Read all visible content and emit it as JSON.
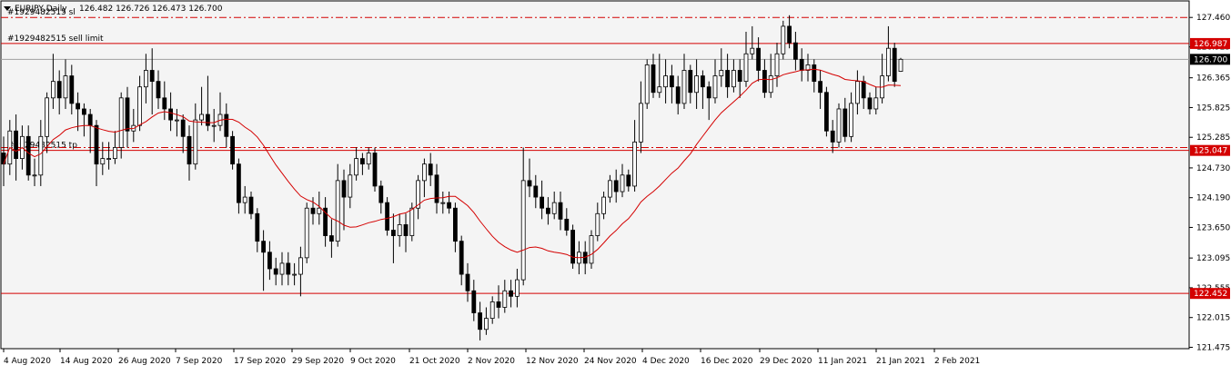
{
  "header": {
    "symbol_label": "EURJPY,Daily",
    "ohlc_text": "126.482 126.726 126.473 126.700",
    "menu_icon": "triangle-down-icon"
  },
  "colors": {
    "background": "#f4f4f4",
    "candle_up": "#ffffff",
    "candle_down": "#000000",
    "outline": "#000000",
    "ma_line": "#d40000",
    "level_line": "#d40000",
    "current_price_line": "#a0a0a0",
    "label_bg": "#d40000",
    "label_text": "#ffffff",
    "current_label_bg": "#000000"
  },
  "chart_data": {
    "type": "candlestick",
    "symbol": "EURJPY",
    "timeframe": "Daily",
    "ylim": [
      121.45,
      127.76
    ],
    "y_ticks": [
      "127.460",
      "126.925",
      "126.365",
      "125.825",
      "125.285",
      "124.730",
      "124.190",
      "123.650",
      "123.095",
      "122.555",
      "122.015",
      "121.475"
    ],
    "x_ticks": [
      "4 Aug 2020",
      "14 Aug 2020",
      "26 Aug 2020",
      "7 Sep 2020",
      "17 Sep 2020",
      "29 Sep 2020",
      "9 Oct 2020",
      "21 Oct 2020",
      "2 Nov 2020",
      "12 Nov 2020",
      "24 Nov 2020",
      "4 Dec 2020",
      "16 Dec 2020",
      "29 Dec 2020",
      "11 Jan 2021",
      "21 Jan 2021",
      "2 Feb 2021"
    ],
    "levels": [
      {
        "name": "sl",
        "label": "#1929482515 sl",
        "price": 127.46,
        "style": "dashdot",
        "show_price_tag": false
      },
      {
        "name": "sell-limit",
        "label": "#1929482515 sell limit",
        "price": 126.987,
        "style": "solid",
        "show_price_tag": true
      },
      {
        "name": "tp",
        "label": "#1929482515 tp",
        "price": 125.047,
        "style": "solid",
        "show_price_tag": true
      },
      {
        "name": "extra-dashdot",
        "label": "",
        "price": 125.1,
        "style": "dashdot",
        "show_price_tag": false
      },
      {
        "name": "support",
        "label": "",
        "price": 122.452,
        "style": "solid",
        "show_price_tag": true
      }
    ],
    "current_price": 126.7,
    "current_price_label": "126.700",
    "candles": [
      [
        125.0,
        124.8,
        125.3,
        124.4
      ],
      [
        124.8,
        125.4,
        125.6,
        124.6
      ],
      [
        125.4,
        124.9,
        125.7,
        124.5
      ],
      [
        124.9,
        125.3,
        125.5,
        124.7
      ],
      [
        125.3,
        124.6,
        125.5,
        124.5
      ],
      [
        124.6,
        124.6,
        124.9,
        124.4
      ],
      [
        124.6,
        125.3,
        125.6,
        124.4
      ],
      [
        125.3,
        126.0,
        126.1,
        125.0
      ],
      [
        126.0,
        126.3,
        126.8,
        125.8
      ],
      [
        126.3,
        126.0,
        126.5,
        125.7
      ],
      [
        126.0,
        126.4,
        126.7,
        125.8
      ],
      [
        126.4,
        125.9,
        126.6,
        125.7
      ],
      [
        125.9,
        125.8,
        126.1,
        125.4
      ],
      [
        125.8,
        125.7,
        125.9,
        125.3
      ],
      [
        125.7,
        125.5,
        125.8,
        125.0
      ],
      [
        125.5,
        124.8,
        125.6,
        124.4
      ],
      [
        124.8,
        124.9,
        125.2,
        124.6
      ],
      [
        124.9,
        124.9,
        125.2,
        124.7
      ],
      [
        124.9,
        125.1,
        125.4,
        124.8
      ],
      [
        125.1,
        126.0,
        126.1,
        124.9
      ],
      [
        126.0,
        125.4,
        126.2,
        125.1
      ],
      [
        125.4,
        125.5,
        125.8,
        125.2
      ],
      [
        125.5,
        126.2,
        126.4,
        125.4
      ],
      [
        126.2,
        126.5,
        126.8,
        125.9
      ],
      [
        126.5,
        126.3,
        126.9,
        125.7
      ],
      [
        126.3,
        126.0,
        126.5,
        125.8
      ],
      [
        126.0,
        125.8,
        126.3,
        125.6
      ],
      [
        125.8,
        125.6,
        126.1,
        125.4
      ],
      [
        125.6,
        125.6,
        125.8,
        125.3
      ],
      [
        125.6,
        125.3,
        125.7,
        125.0
      ],
      [
        125.3,
        124.8,
        125.5,
        124.5
      ],
      [
        124.8,
        125.6,
        125.9,
        124.7
      ],
      [
        125.6,
        125.7,
        126.2,
        125.5
      ],
      [
        125.7,
        125.5,
        126.4,
        125.4
      ],
      [
        125.5,
        125.5,
        125.8,
        125.2
      ],
      [
        125.5,
        125.7,
        126.1,
        125.4
      ],
      [
        125.7,
        125.3,
        125.9,
        125.1
      ],
      [
        125.3,
        124.8,
        125.4,
        124.7
      ],
      [
        124.8,
        124.1,
        124.9,
        123.9
      ],
      [
        124.1,
        124.2,
        124.4,
        123.9
      ],
      [
        124.2,
        123.9,
        124.3,
        123.8
      ],
      [
        123.9,
        123.4,
        124.0,
        123.2
      ],
      [
        123.4,
        123.2,
        123.6,
        122.5
      ],
      [
        123.2,
        122.9,
        123.4,
        122.7
      ],
      [
        122.9,
        122.8,
        123.1,
        122.6
      ],
      [
        122.8,
        123.0,
        123.2,
        122.6
      ],
      [
        123.0,
        122.8,
        123.2,
        122.6
      ],
      [
        122.8,
        122.8,
        123.0,
        122.6
      ],
      [
        122.8,
        123.1,
        123.3,
        122.4
      ],
      [
        123.1,
        124.0,
        124.1,
        123.0
      ],
      [
        124.0,
        123.9,
        124.2,
        123.7
      ],
      [
        123.9,
        124.0,
        124.3,
        123.7
      ],
      [
        124.0,
        123.5,
        124.2,
        123.3
      ],
      [
        123.5,
        123.4,
        123.8,
        123.1
      ],
      [
        123.4,
        124.5,
        124.8,
        123.3
      ],
      [
        124.5,
        124.2,
        124.7,
        123.6
      ],
      [
        124.2,
        124.6,
        124.8,
        124.0
      ],
      [
        124.6,
        124.9,
        125.1,
        124.5
      ],
      [
        124.9,
        124.8,
        125.0,
        124.6
      ],
      [
        124.8,
        125.0,
        125.1,
        124.7
      ],
      [
        125.0,
        124.4,
        125.1,
        124.3
      ],
      [
        124.4,
        124.1,
        124.5,
        123.9
      ],
      [
        124.1,
        123.6,
        124.2,
        123.5
      ],
      [
        123.6,
        123.5,
        123.9,
        123.0
      ],
      [
        123.5,
        123.7,
        123.9,
        123.3
      ],
      [
        123.7,
        123.5,
        123.9,
        123.2
      ],
      [
        123.5,
        124.0,
        124.1,
        123.4
      ],
      [
        124.0,
        124.5,
        124.6,
        123.8
      ],
      [
        124.5,
        124.8,
        124.9,
        124.2
      ],
      [
        124.8,
        124.6,
        125.0,
        124.4
      ],
      [
        124.6,
        124.1,
        124.8,
        123.9
      ],
      [
        124.1,
        124.1,
        124.3,
        123.9
      ],
      [
        124.1,
        124.0,
        124.3,
        123.9
      ],
      [
        124.0,
        123.4,
        124.1,
        123.2
      ],
      [
        123.4,
        122.8,
        123.5,
        122.6
      ],
      [
        122.8,
        122.5,
        123.0,
        122.3
      ],
      [
        122.5,
        122.1,
        122.7,
        121.95
      ],
      [
        122.1,
        121.8,
        122.3,
        121.6
      ],
      [
        121.8,
        122.0,
        122.2,
        121.7
      ],
      [
        122.0,
        122.3,
        122.4,
        121.9
      ],
      [
        122.3,
        122.2,
        122.6,
        122.0
      ],
      [
        122.2,
        122.5,
        122.7,
        122.1
      ],
      [
        122.5,
        122.4,
        122.7,
        122.2
      ],
      [
        122.4,
        122.7,
        122.9,
        122.2
      ],
      [
        122.7,
        124.5,
        125.1,
        122.6
      ],
      [
        124.5,
        124.4,
        124.9,
        124.2
      ],
      [
        124.4,
        124.2,
        124.6,
        124.0
      ],
      [
        124.2,
        124.0,
        124.5,
        123.8
      ],
      [
        124.0,
        123.9,
        124.2,
        123.7
      ],
      [
        123.9,
        124.1,
        124.3,
        123.8
      ],
      [
        124.1,
        123.8,
        124.3,
        123.6
      ],
      [
        123.8,
        123.6,
        124.0,
        123.5
      ],
      [
        123.6,
        123.0,
        123.7,
        122.9
      ],
      [
        123.0,
        123.2,
        123.4,
        122.8
      ],
      [
        123.2,
        123.0,
        123.4,
        122.8
      ],
      [
        123.0,
        123.5,
        123.6,
        122.9
      ],
      [
        123.5,
        123.9,
        124.1,
        123.4
      ],
      [
        123.9,
        124.2,
        124.3,
        123.8
      ],
      [
        124.2,
        124.5,
        124.6,
        124.1
      ],
      [
        124.5,
        124.3,
        124.7,
        124.1
      ],
      [
        124.3,
        124.6,
        124.8,
        124.2
      ],
      [
        124.6,
        124.4,
        124.7,
        124.3
      ],
      [
        124.4,
        125.2,
        125.6,
        124.3
      ],
      [
        125.2,
        125.9,
        126.3,
        125.0
      ],
      [
        125.9,
        126.6,
        126.7,
        125.8
      ],
      [
        126.6,
        126.1,
        126.8,
        126.0
      ],
      [
        126.1,
        126.2,
        126.8,
        126.0
      ],
      [
        126.2,
        126.4,
        126.7,
        125.9
      ],
      [
        126.4,
        126.2,
        126.6,
        125.9
      ],
      [
        126.2,
        125.9,
        126.4,
        125.7
      ],
      [
        125.9,
        126.5,
        126.8,
        125.8
      ],
      [
        126.5,
        126.1,
        126.6,
        125.9
      ],
      [
        126.1,
        126.4,
        126.7,
        125.8
      ],
      [
        126.4,
        126.2,
        126.5,
        125.8
      ],
      [
        126.2,
        126.0,
        126.3,
        125.6
      ],
      [
        126.0,
        126.4,
        126.7,
        125.9
      ],
      [
        126.4,
        126.5,
        126.9,
        126.2
      ],
      [
        126.5,
        126.2,
        126.8,
        126.0
      ],
      [
        126.2,
        126.5,
        126.7,
        126.1
      ],
      [
        126.5,
        126.3,
        126.7,
        126.0
      ],
      [
        126.3,
        126.8,
        127.2,
        126.2
      ],
      [
        126.8,
        126.9,
        127.3,
        126.7
      ],
      [
        126.9,
        126.5,
        127.1,
        126.3
      ],
      [
        126.5,
        126.1,
        126.7,
        126.0
      ],
      [
        126.1,
        126.4,
        126.8,
        126.0
      ],
      [
        126.4,
        126.8,
        127.0,
        126.2
      ],
      [
        126.8,
        127.3,
        127.4,
        126.7
      ],
      [
        127.3,
        127.0,
        127.5,
        126.9
      ],
      [
        127.0,
        126.7,
        127.2,
        126.5
      ],
      [
        126.7,
        126.5,
        126.9,
        126.3
      ],
      [
        126.5,
        126.6,
        126.8,
        126.3
      ],
      [
        126.6,
        126.3,
        126.7,
        126.1
      ],
      [
        126.3,
        126.1,
        126.5,
        125.8
      ],
      [
        126.1,
        125.4,
        126.2,
        125.3
      ],
      [
        125.4,
        125.2,
        125.6,
        125.0
      ],
      [
        125.2,
        125.8,
        125.9,
        125.1
      ],
      [
        125.8,
        125.3,
        126.0,
        125.2
      ],
      [
        125.3,
        125.9,
        126.1,
        125.2
      ],
      [
        125.9,
        126.3,
        126.5,
        125.7
      ],
      [
        126.3,
        126.0,
        126.4,
        125.8
      ],
      [
        126.0,
        125.8,
        126.1,
        125.7
      ],
      [
        125.8,
        126.0,
        126.2,
        125.7
      ],
      [
        126.0,
        126.4,
        126.8,
        125.9
      ],
      [
        126.4,
        126.9,
        127.3,
        126.3
      ],
      [
        126.9,
        126.3,
        127.0,
        126.2
      ],
      [
        126.482,
        126.7,
        126.726,
        126.473
      ]
    ],
    "moving_average": {
      "period": 20,
      "color": "#d40000"
    }
  }
}
